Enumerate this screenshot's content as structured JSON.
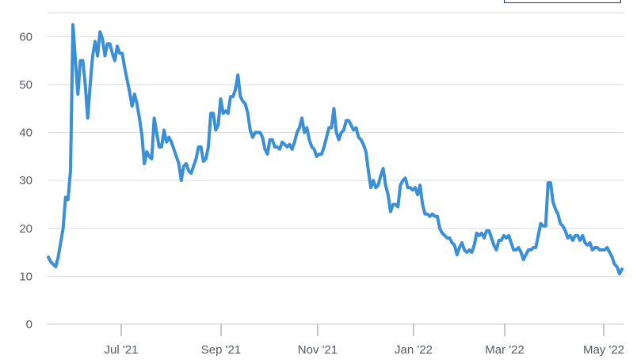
{
  "chart_data": {
    "type": "line",
    "title": "",
    "xlabel": "",
    "ylabel": "",
    "ylim": [
      0,
      65
    ],
    "yticks": [
      0,
      10,
      20,
      30,
      40,
      50,
      60
    ],
    "x_tick_labels": [
      "Jul '21",
      "Sep '21",
      "Nov '21",
      "Jan '22",
      "Mar '22",
      "May '22"
    ],
    "grid": "horizontal",
    "line_color": "#3a8fd6",
    "series": [
      {
        "values": [
          14,
          13,
          12.5,
          12,
          14,
          17,
          20,
          26.5,
          26,
          32,
          62.5,
          55,
          48,
          55,
          55,
          50,
          43,
          50,
          56,
          59,
          56,
          61,
          59.5,
          56,
          58.5,
          58.5,
          56.5,
          55,
          58,
          56.5,
          56.5,
          53.5,
          51,
          48.5,
          45.5,
          48,
          46,
          43,
          39.5,
          33.5,
          36,
          35,
          34.5,
          43,
          40,
          37,
          37,
          40.5,
          38,
          39,
          38,
          36.5,
          35,
          33.5,
          30,
          33,
          33.5,
          32,
          31.5,
          33,
          34.5,
          37,
          37,
          34,
          34.5,
          37,
          44,
          44,
          40.5,
          41.5,
          47,
          44,
          44.5,
          44,
          47.5,
          47.5,
          49,
          52,
          47.5,
          46.5,
          46,
          44,
          40.5,
          39,
          40,
          40,
          40,
          39,
          36.5,
          35.5,
          38.5,
          38.5,
          37,
          37,
          36.5,
          38,
          37.5,
          37,
          37.5,
          36.5,
          38,
          40,
          41,
          43,
          40,
          41,
          38.5,
          37,
          36.5,
          35,
          35.5,
          35.5,
          37,
          39,
          41,
          41,
          45,
          40,
          38.5,
          40,
          40.5,
          42.5,
          42.5,
          41.5,
          40.5,
          41,
          39,
          38.5,
          37.5,
          36,
          32,
          28.5,
          30,
          28.5,
          29,
          31,
          32.5,
          29,
          27,
          23.5,
          25,
          25,
          24.5,
          29,
          30,
          30.5,
          28.5,
          28.5,
          28,
          28.5,
          27,
          29,
          25,
          23,
          23,
          22.5,
          23,
          22.5,
          22.5,
          20,
          19,
          18.5,
          18,
          18,
          17,
          16.5,
          14.5,
          16,
          17,
          15.5,
          15,
          15.5,
          15,
          16.5,
          19,
          18.5,
          19,
          18,
          19.5,
          19.5,
          18,
          16.5,
          15.5,
          17.5,
          17.5,
          18.5,
          18,
          18.5,
          17,
          15.5,
          15.5,
          16,
          15,
          13.5,
          14.5,
          15.5,
          15.5,
          16,
          16,
          18.5,
          21,
          20.5,
          20.5,
          29.5,
          29.5,
          25.5,
          24,
          23,
          21,
          20.5,
          19.5,
          18,
          18.5,
          17.5,
          18.5,
          18.5,
          17.5,
          18.5,
          17,
          16.5,
          17,
          15.5,
          16,
          16,
          15.5,
          15.5,
          15.5,
          16,
          15,
          14,
          12.5,
          12,
          10.5,
          11.5
        ]
      }
    ]
  }
}
